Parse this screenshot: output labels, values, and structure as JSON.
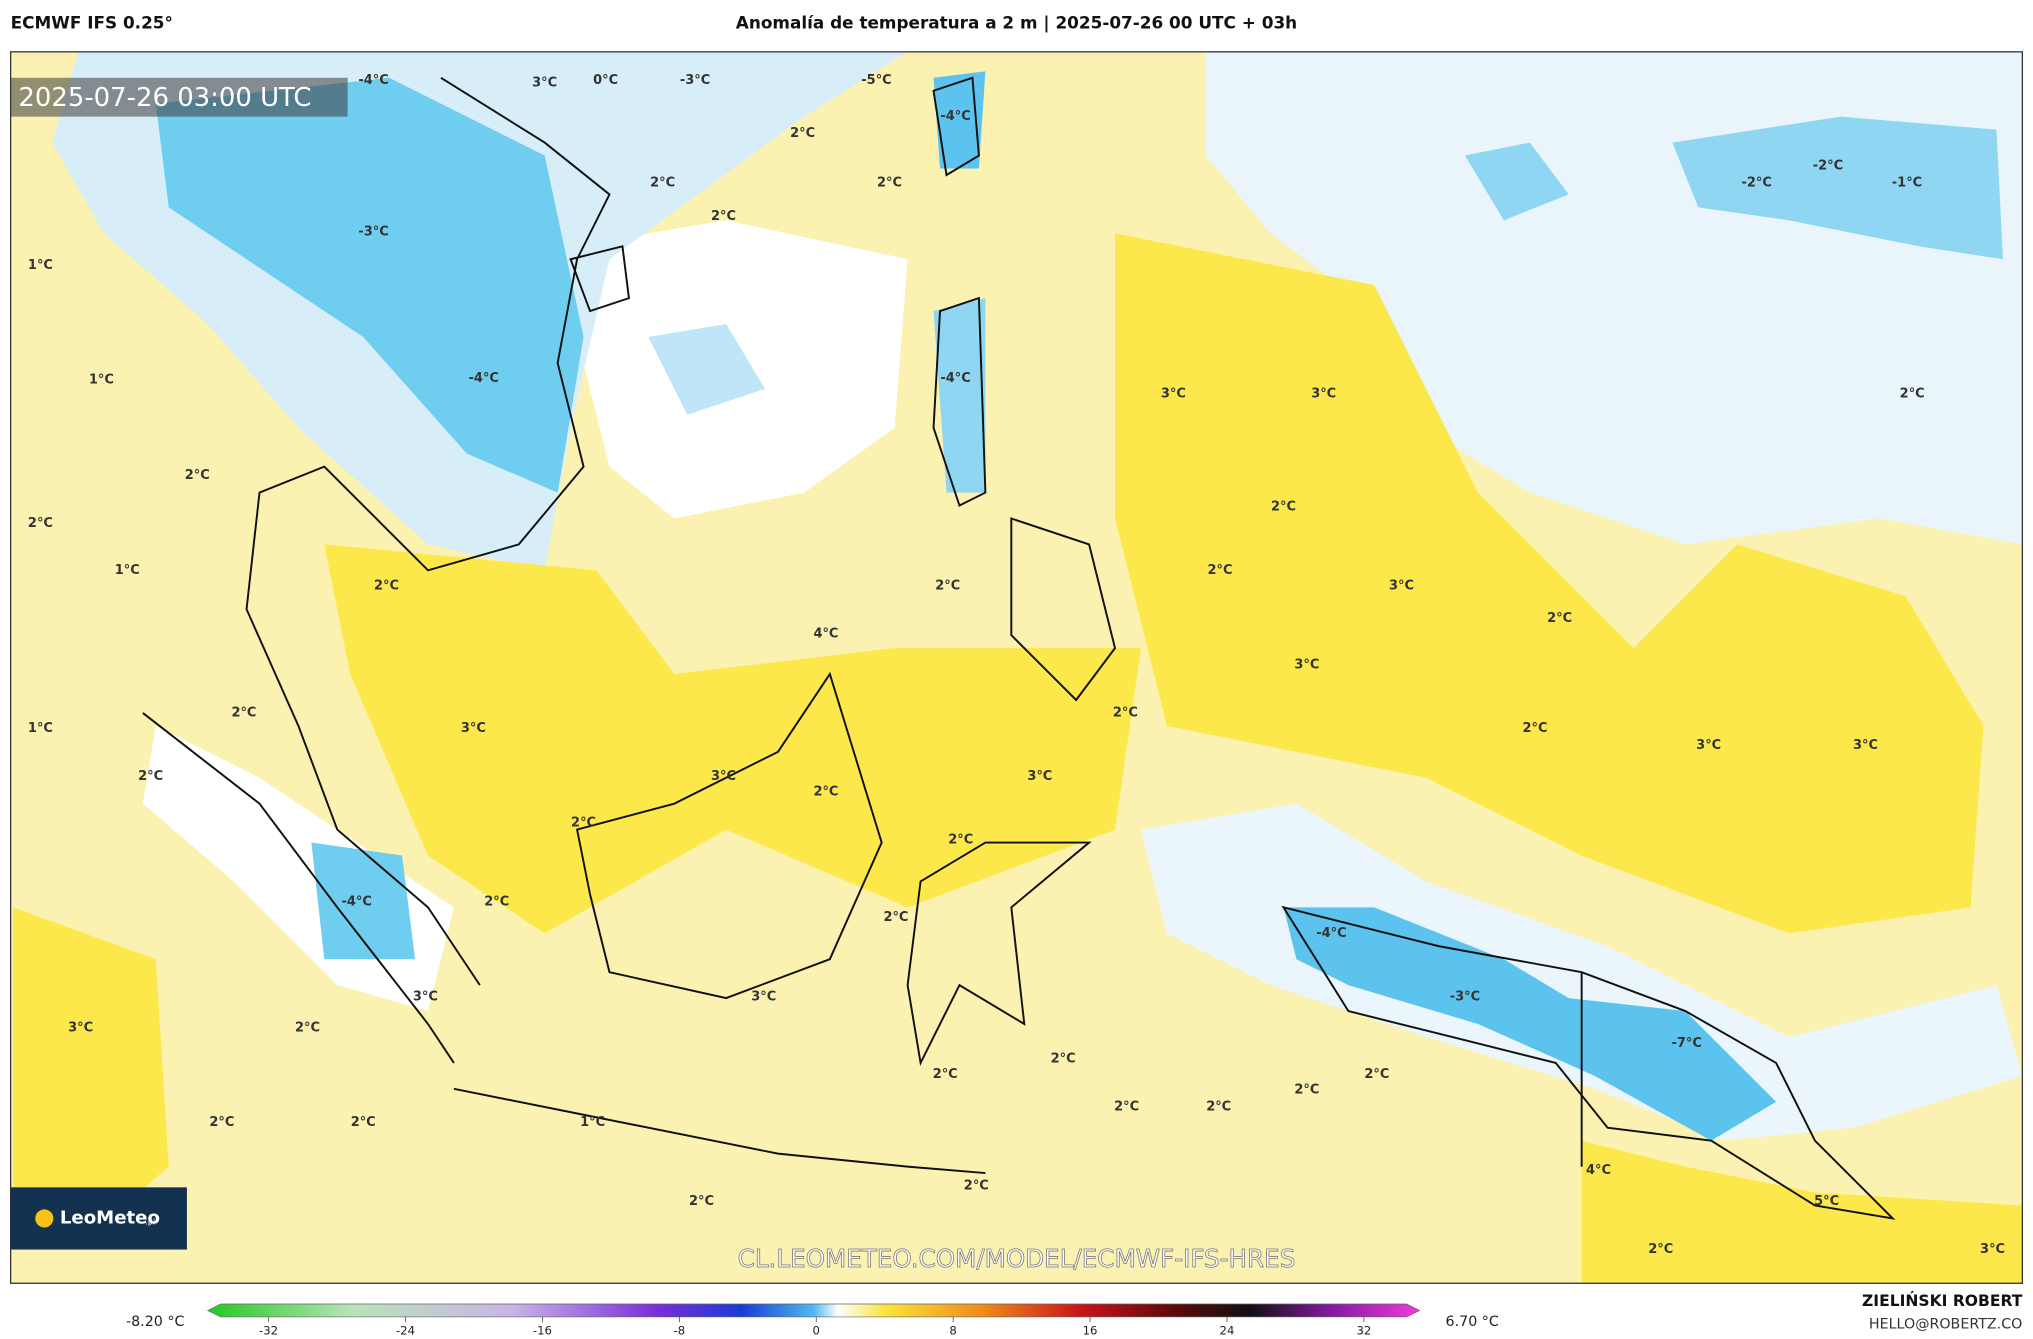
{
  "header": {
    "model": "ECMWF IFS 0.25°",
    "title": "Anomalía de temperatura a 2 m | 2025-07-26 00 UTC + 03h"
  },
  "map": {
    "timestamp": "2025-07-26 03:00 UTC",
    "watermark": "CL.LEOMETEO.COM/MODEL/ECMWF-IFS-HRES",
    "logo": "LeoMeteo",
    "logo_suffix": ".pl",
    "labels": [
      "-4°C",
      "3°C",
      "0°C",
      "-3°C",
      "-5°C",
      "-4°C",
      "2°C",
      "2°C",
      "2°C",
      "2°C",
      "-3°C",
      "1°C",
      "1°C",
      "-4°C",
      "-4°C",
      "3°C",
      "3°C",
      "2°C",
      "-2°C",
      "-2°C",
      "-1°C",
      "2°C",
      "2°C",
      "1°C",
      "2°C",
      "2°C",
      "2°C",
      "2°C",
      "3°C",
      "2°C",
      "4°C",
      "3°C",
      "2°C",
      "2°C",
      "1°C",
      "3°C",
      "2°C",
      "3°C",
      "3°C",
      "2°C",
      "3°C",
      "3°C",
      "2°C",
      "2°C",
      "2°C",
      "-4°C",
      "2°C",
      "2°C",
      "-4°C",
      "-3°C",
      "3°C",
      "3°C",
      "3°C",
      "2°C",
      "-7°C",
      "2°C",
      "2°C",
      "2°C",
      "2°C",
      "2°C",
      "2°C",
      "2°C",
      "2°C",
      "1°C",
      "4°C",
      "2°C",
      "2°C",
      "5°C",
      "2°C",
      "3°C"
    ]
  },
  "colorbar": {
    "min_label": "-8.20 °C",
    "max_label": "6.70 °C",
    "ticks": [
      -32,
      -24,
      -16,
      -8,
      0,
      8,
      16,
      24,
      32
    ]
  },
  "credits": {
    "author": "ZIELIŃSKI ROBERT",
    "email": "HELLO@ROBERTZ.CO"
  }
}
